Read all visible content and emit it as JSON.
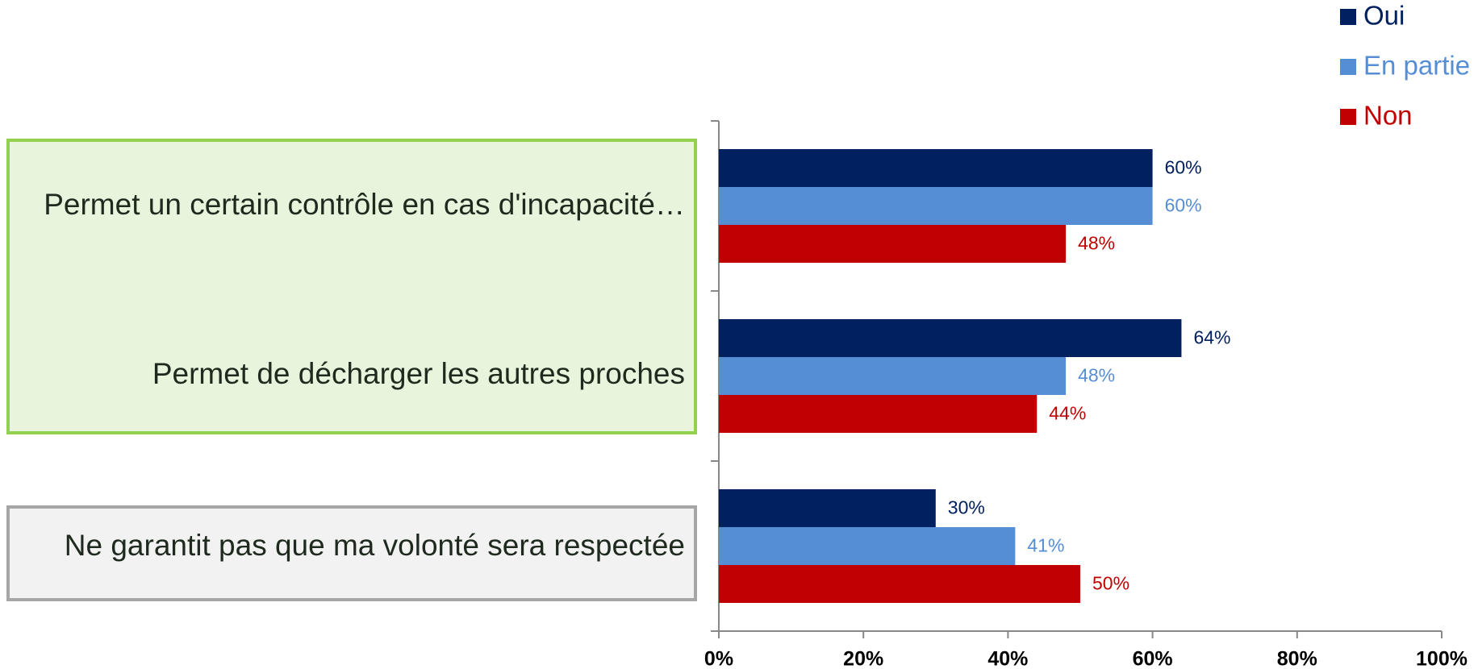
{
  "chart_data": {
    "type": "bar",
    "orientation": "horizontal",
    "categories": [
      "Permet un certain contrôle en cas d'incapacité…",
      "Permet de décharger les autres proches",
      "Ne garantit pas que ma volonté sera respectée"
    ],
    "series": [
      {
        "name": "Oui",
        "color": "#002060",
        "values": [
          60,
          64,
          30
        ],
        "value_labels": [
          "60%",
          "64%",
          "30%"
        ]
      },
      {
        "name": "En partie",
        "color": "#558ed5",
        "values": [
          60,
          48,
          41
        ],
        "value_labels": [
          "60%",
          "48%",
          "41%"
        ]
      },
      {
        "name": "Non",
        "color": "#c00000",
        "values": [
          48,
          44,
          50
        ],
        "value_labels": [
          "48%",
          "44%",
          "50%"
        ]
      }
    ],
    "xlim": [
      0,
      100
    ],
    "xticks": [
      {
        "value": 0,
        "label": "0%"
      },
      {
        "value": 20,
        "label": "20%"
      },
      {
        "value": 40,
        "label": "40%"
      },
      {
        "value": 60,
        "label": "60%"
      },
      {
        "value": 80,
        "label": "80%"
      },
      {
        "value": 100,
        "label": "100%"
      }
    ],
    "legend": "top-right"
  }
}
